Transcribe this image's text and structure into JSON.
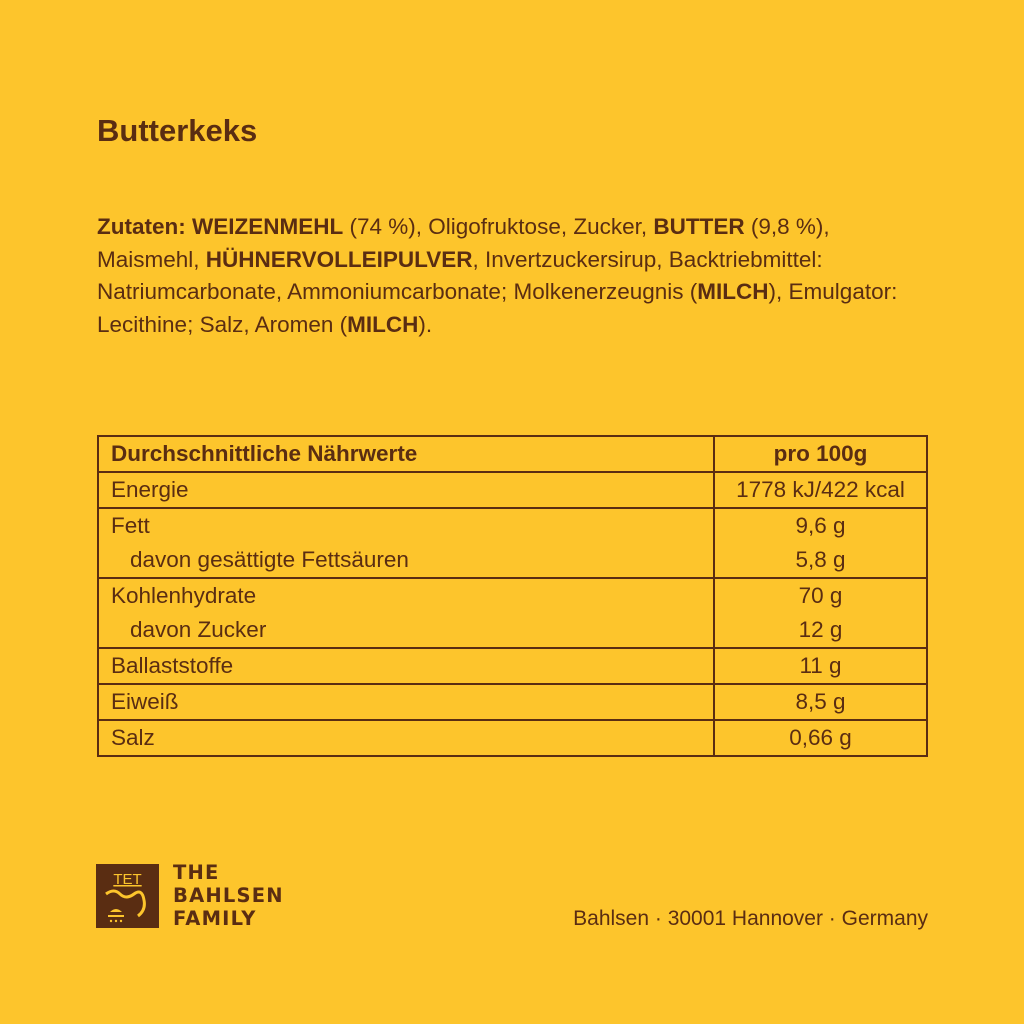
{
  "title": "Butterkeks",
  "ingredients": [
    {
      "t": "Zutaten: ",
      "b": true
    },
    {
      "t": "WEIZENMEHL",
      "b": true
    },
    {
      "t": " (74 %), Oligofruktose, Zucker, ",
      "b": false
    },
    {
      "t": "BUTTER",
      "b": true
    },
    {
      "t": " (9,8 %), Maismehl, ",
      "b": false
    },
    {
      "t": "HÜHNERVOLLEIPULVER",
      "b": true
    },
    {
      "t": ", Invertzuckersirup, Backtriebmittel: Natriumcarbonate, Ammoniumcarbonate; Molkenerzeugnis (",
      "b": false
    },
    {
      "t": "MILCH",
      "b": true
    },
    {
      "t": "), Emulgator: Lecithine; Salz, Aromen (",
      "b": false
    },
    {
      "t": "MILCH",
      "b": true
    },
    {
      "t": ").",
      "b": false
    }
  ],
  "table": {
    "header": [
      "Durchschnittliche Nährwerte",
      "pro 100g"
    ],
    "rows": [
      {
        "label": "Energie",
        "value": "1778 kJ/422 kcal"
      },
      {
        "label": "Fett",
        "value": "9,6 g"
      },
      {
        "label": "davon gesättigte Fettsäuren",
        "value": "5,8 g"
      },
      {
        "label": "Kohlenhydrate",
        "value": "70 g"
      },
      {
        "label": "davon Zucker",
        "value": "12 g"
      },
      {
        "label": "Ballaststoffe",
        "value": "11 g"
      },
      {
        "label": "Eiweiß",
        "value": "8,5 g"
      },
      {
        "label": "Salz",
        "value": "0,66 g"
      }
    ]
  },
  "logo": {
    "mark": "TET",
    "lines": [
      "THE",
      "BAHLSEN",
      "FAMILY"
    ]
  },
  "address": "Bahlsen · 30001 Hannover · Germany",
  "colors": {
    "background": "#FDC52C",
    "text": "#5A2D12"
  }
}
